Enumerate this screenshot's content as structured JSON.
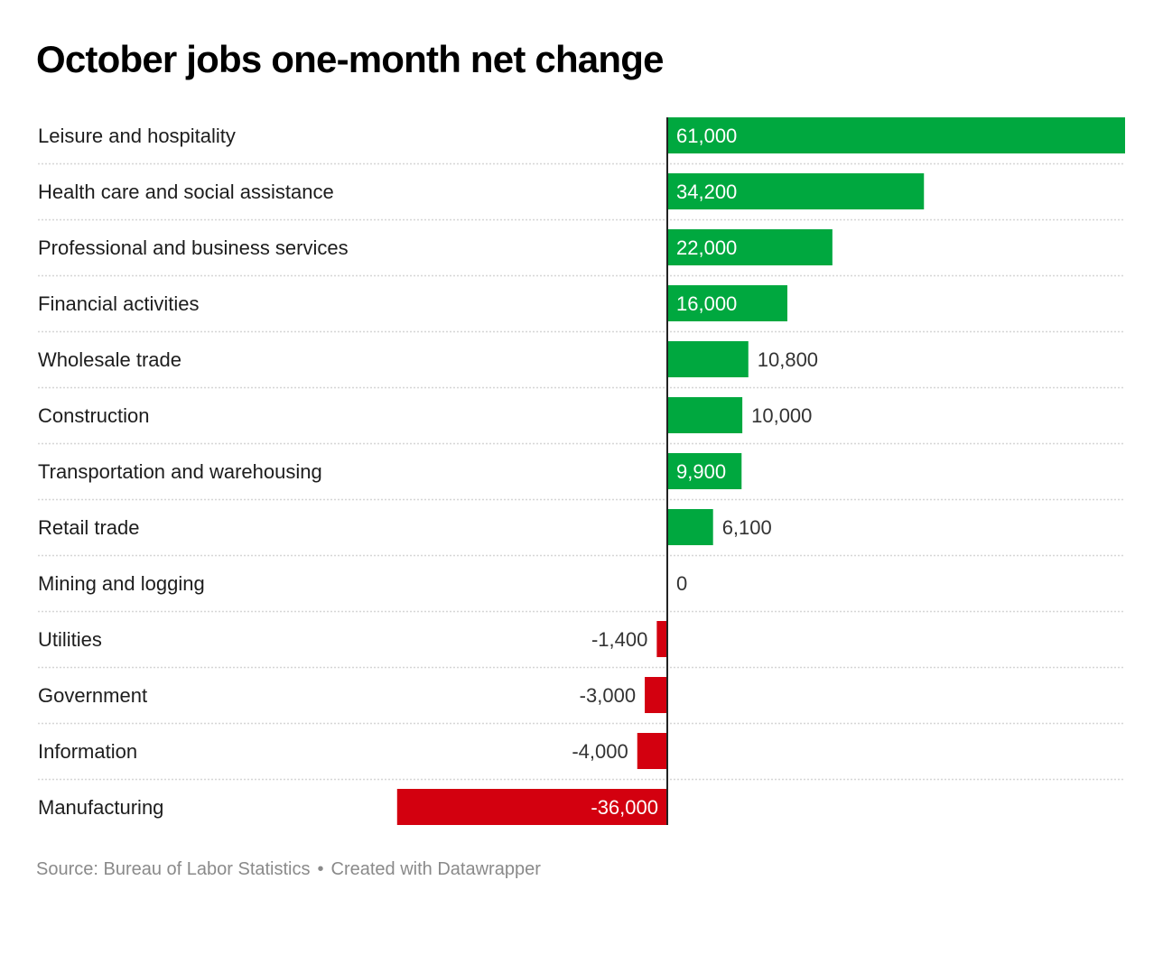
{
  "title": "October jobs one-month net change",
  "footer": {
    "source": "Source: Bureau of Labor Statistics",
    "separator": "•",
    "credit": "Created with Datawrapper"
  },
  "colors": {
    "positive": "#00a83f",
    "negative": "#d3000f",
    "axis": "#222222",
    "rule": "#d6d6d6"
  },
  "chart_data": {
    "type": "bar",
    "orientation": "horizontal",
    "title": "October jobs one-month net change",
    "xlabel": "",
    "ylabel": "",
    "grid": false,
    "xlim": [
      -36000,
      61000
    ],
    "categories": [
      "Leisure and hospitality",
      "Health care and social assistance",
      "Professional and business services",
      "Financial activities",
      "Wholesale trade",
      "Construction",
      "Transportation and warehousing",
      "Retail trade",
      "Mining and logging",
      "Utilities",
      "Government",
      "Information",
      "Manufacturing"
    ],
    "values": [
      61000,
      34200,
      22000,
      16000,
      10800,
      10000,
      9900,
      6100,
      0,
      -1400,
      -3000,
      -4000,
      -36000
    ],
    "labels": [
      "61,000",
      "34,200",
      "22,000",
      "16,000",
      "10,800",
      "10,000",
      "9,900",
      "6,100",
      "0",
      "-1,400",
      "-3,000",
      "-4,000",
      "-36,000"
    ],
    "label_inside": [
      true,
      true,
      true,
      true,
      false,
      false,
      true,
      false,
      false,
      false,
      false,
      false,
      true
    ]
  }
}
